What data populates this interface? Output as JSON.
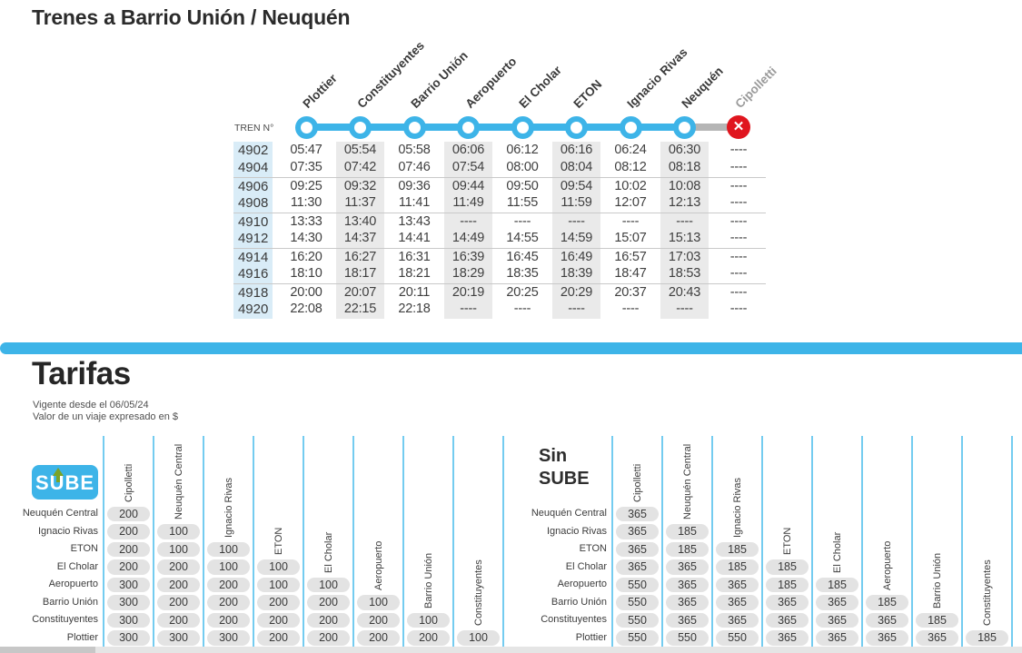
{
  "header": {
    "title": "Trenes a Barrio Unión / Neuquén"
  },
  "timetable": {
    "train_col_label": "TREN N°",
    "closed_station_glyph": "✕",
    "stations": [
      {
        "name": "Plottier",
        "status": "active"
      },
      {
        "name": "Constituyentes",
        "status": "active"
      },
      {
        "name": "Barrio Unión",
        "status": "active"
      },
      {
        "name": "Aeropuerto",
        "status": "active"
      },
      {
        "name": "El Cholar",
        "status": "active"
      },
      {
        "name": "ETON",
        "status": "active"
      },
      {
        "name": "Ignacio Rivas",
        "status": "active"
      },
      {
        "name": "Neuquén",
        "status": "active"
      },
      {
        "name": "Cipolletti",
        "status": "closed"
      }
    ],
    "rows": [
      {
        "train": "4902",
        "times": [
          "05:47",
          "05:54",
          "05:58",
          "06:06",
          "06:12",
          "06:16",
          "06:24",
          "06:30",
          "----"
        ]
      },
      {
        "train": "4904",
        "times": [
          "07:35",
          "07:42",
          "07:46",
          "07:54",
          "08:00",
          "08:04",
          "08:12",
          "08:18",
          "----"
        ]
      },
      {
        "train": "4906",
        "times": [
          "09:25",
          "09:32",
          "09:36",
          "09:44",
          "09:50",
          "09:54",
          "10:02",
          "10:08",
          "----"
        ]
      },
      {
        "train": "4908",
        "times": [
          "11:30",
          "11:37",
          "11:41",
          "11:49",
          "11:55",
          "11:59",
          "12:07",
          "12:13",
          "----"
        ]
      },
      {
        "train": "4910",
        "times": [
          "13:33",
          "13:40",
          "13:43",
          "----",
          "----",
          "----",
          "----",
          "----",
          "----"
        ]
      },
      {
        "train": "4912",
        "times": [
          "14:30",
          "14:37",
          "14:41",
          "14:49",
          "14:55",
          "14:59",
          "15:07",
          "15:13",
          "----"
        ]
      },
      {
        "train": "4914",
        "times": [
          "16:20",
          "16:27",
          "16:31",
          "16:39",
          "16:45",
          "16:49",
          "16:57",
          "17:03",
          "----"
        ]
      },
      {
        "train": "4916",
        "times": [
          "18:10",
          "18:17",
          "18:21",
          "18:29",
          "18:35",
          "18:39",
          "18:47",
          "18:53",
          "----"
        ]
      },
      {
        "train": "4918",
        "times": [
          "20:00",
          "20:07",
          "20:11",
          "20:19",
          "20:25",
          "20:29",
          "20:37",
          "20:43",
          "----"
        ]
      },
      {
        "train": "4920",
        "times": [
          "22:08",
          "22:15",
          "22:18",
          "----",
          "----",
          "----",
          "----",
          "----",
          "----"
        ]
      }
    ]
  },
  "tarifas": {
    "title": "Tarifas",
    "note1": "Vigente desde el 06/05/24",
    "note2": "Valor de un viaje expresado en $",
    "row_labels": [
      "Neuquén Central",
      "Ignacio Rivas",
      "ETON",
      "El Cholar",
      "Aeropuerto",
      "Barrio Unión",
      "Constituyentes",
      "Plottier"
    ],
    "col_labels": [
      "Cipolletti",
      "Neuquén Central",
      "Ignacio Rivas",
      "ETON",
      "El Cholar",
      "Aeropuerto",
      "Barrio Unión",
      "Constituyentes"
    ],
    "sube": {
      "logo_text": "SUBE",
      "values": [
        [
          200
        ],
        [
          200,
          100
        ],
        [
          200,
          100,
          100
        ],
        [
          200,
          200,
          100,
          100
        ],
        [
          300,
          200,
          200,
          100,
          100
        ],
        [
          300,
          200,
          200,
          200,
          200,
          100
        ],
        [
          300,
          200,
          200,
          200,
          200,
          200,
          100
        ],
        [
          300,
          300,
          300,
          200,
          200,
          200,
          200,
          100
        ]
      ]
    },
    "sin_sube": {
      "label_line1": "Sin",
      "label_line2": "SUBE",
      "values": [
        [
          365
        ],
        [
          365,
          185
        ],
        [
          365,
          185,
          185
        ],
        [
          365,
          365,
          185,
          185
        ],
        [
          550,
          365,
          365,
          185,
          185
        ],
        [
          550,
          365,
          365,
          365,
          365,
          185
        ],
        [
          550,
          365,
          365,
          365,
          365,
          365,
          185
        ],
        [
          550,
          550,
          550,
          365,
          365,
          365,
          365,
          185
        ]
      ]
    }
  },
  "colors": {
    "accent_blue": "#3db4e8",
    "light_blue_column": "#d9ecf7",
    "shaded_column": "#eaeaea",
    "fare_pill": "#e3e3e3",
    "fare_separator": "#74ccf0",
    "closed_red": "#e0161f",
    "closed_gray_line": "#b5b5b5",
    "sube_arrow_green": "#7aa327"
  }
}
